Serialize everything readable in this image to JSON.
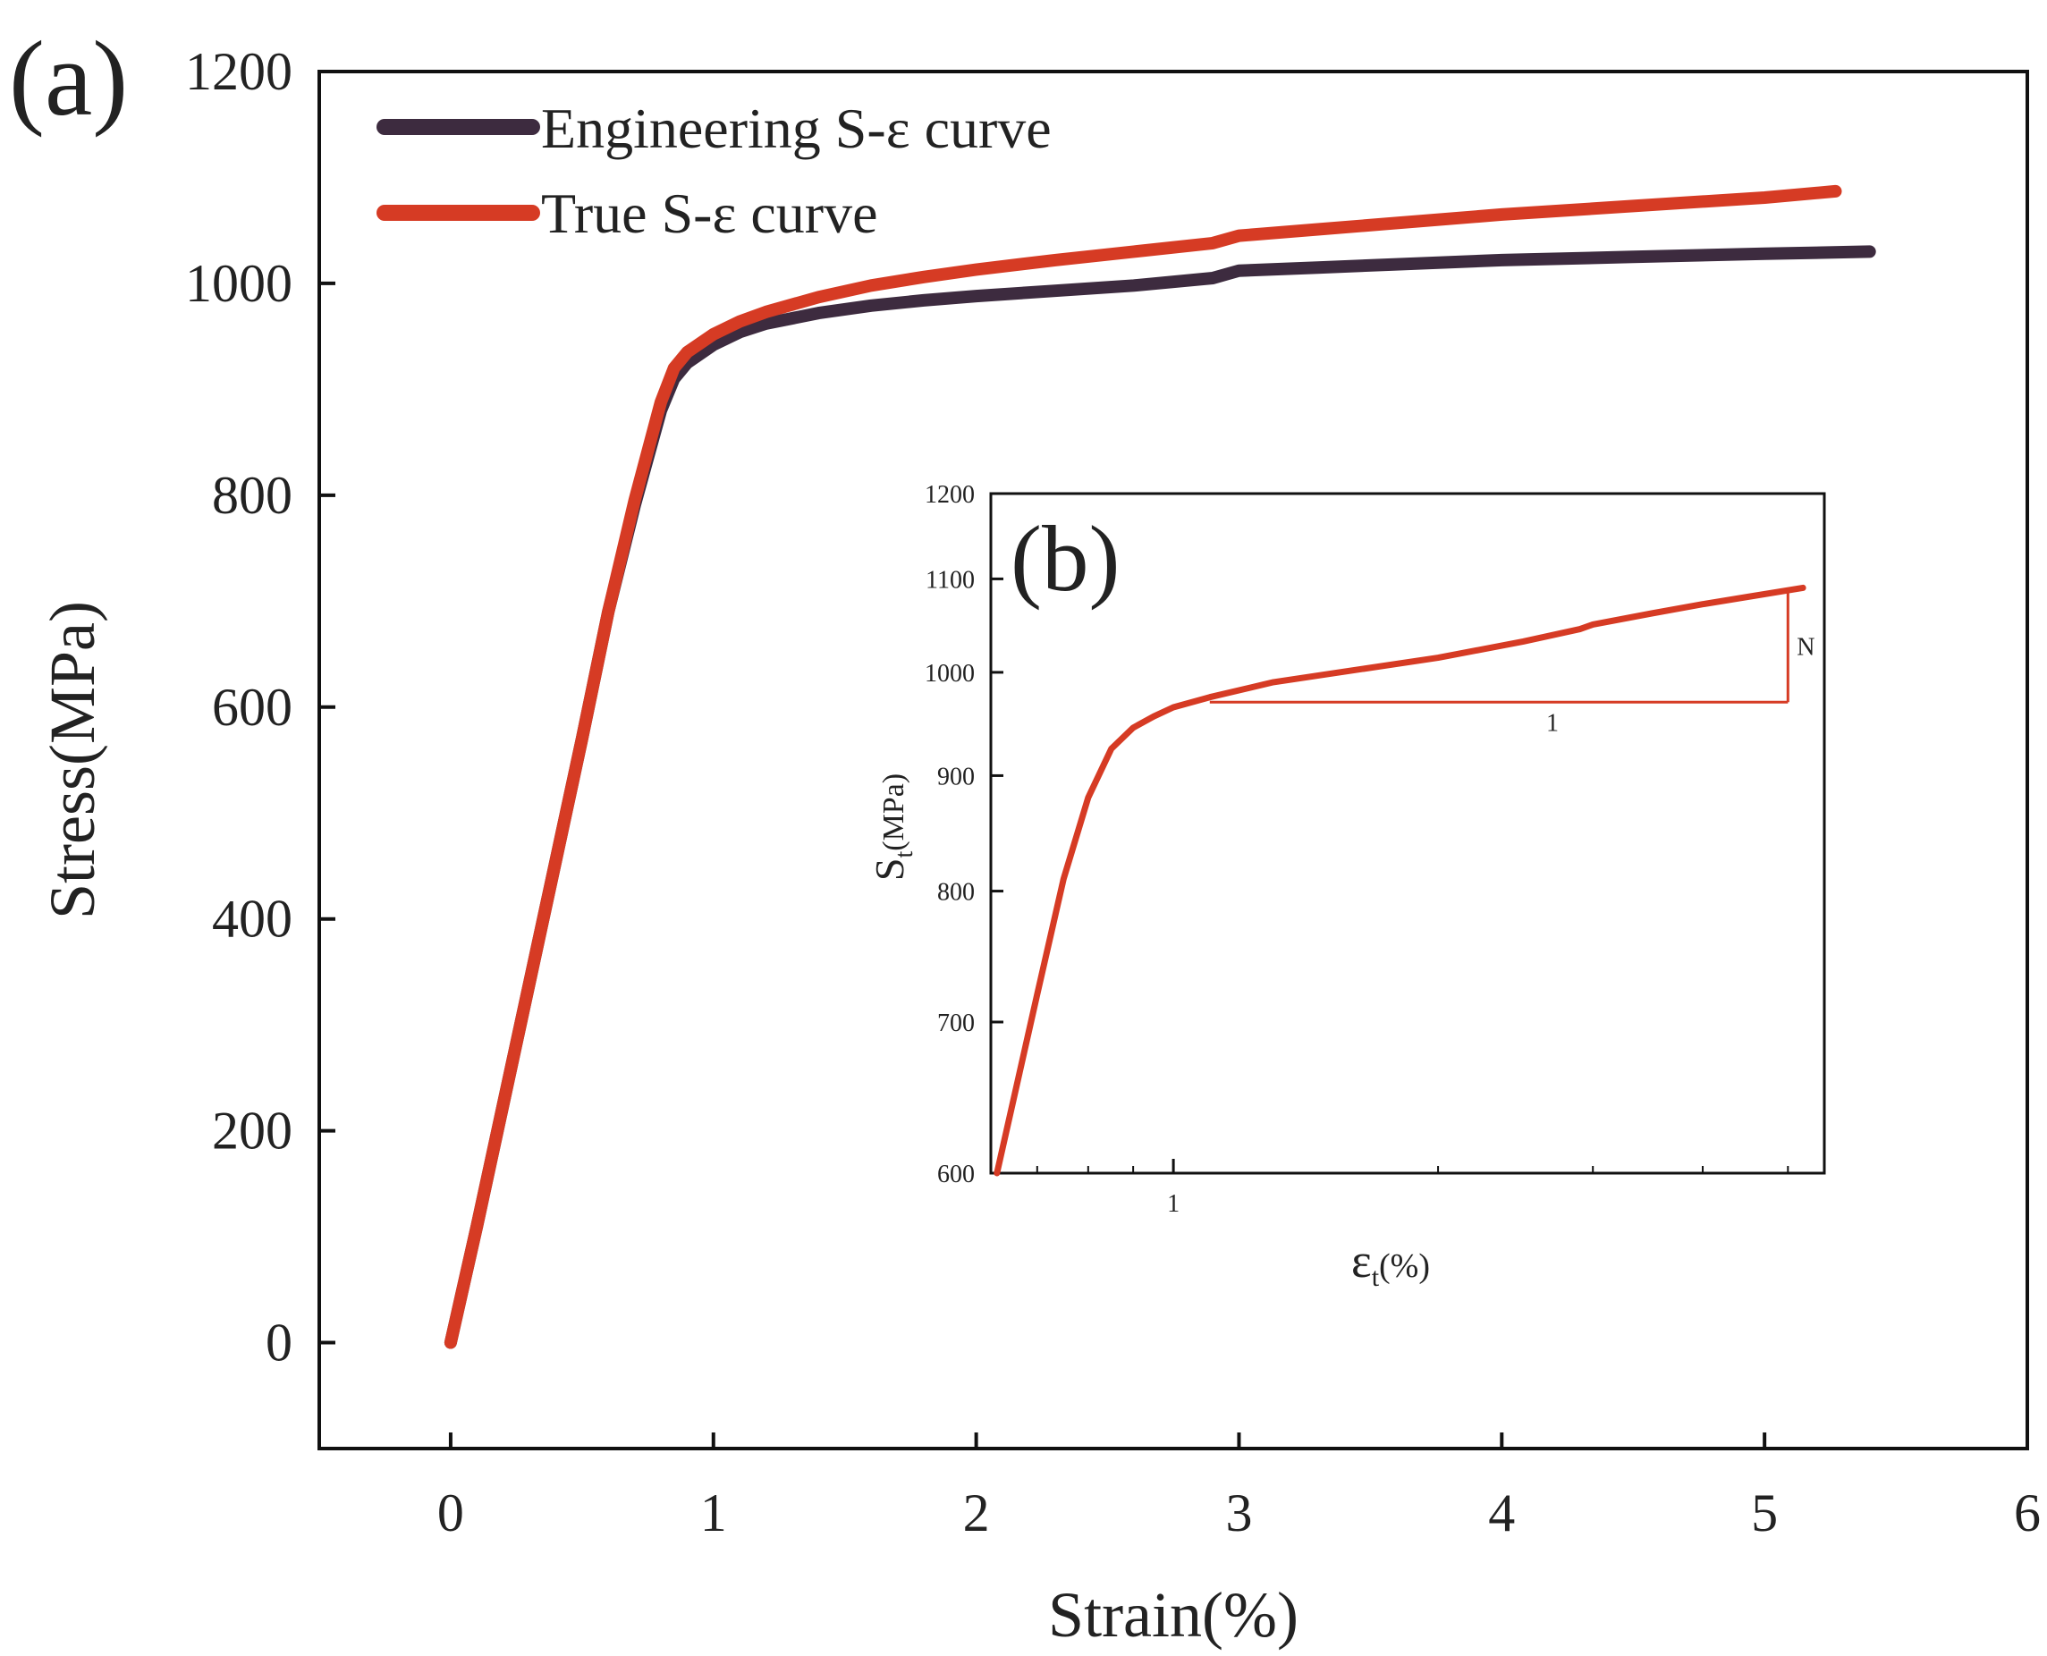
{
  "chart_data": [
    {
      "panel_label": "(a)",
      "type": "line",
      "xlabel": "Strain(%)",
      "ylabel": "Stress(MPa)",
      "xlim": [
        -0.5,
        6
      ],
      "ylim": [
        -100,
        1200
      ],
      "xticks": [
        0,
        1,
        2,
        3,
        4,
        5,
        6
      ],
      "yticks": [
        0,
        200,
        400,
        600,
        800,
        1000,
        1200
      ],
      "xtick_labels": [
        "0",
        "1",
        "2",
        "3",
        "4",
        "5",
        "6"
      ],
      "ytick_labels": [
        "0",
        "200",
        "400",
        "600",
        "800",
        "1000",
        "1200"
      ],
      "legend_placement": "top-left",
      "series": [
        {
          "name": "Engineering S-ε curve",
          "color": "#3d2b3f",
          "x": [
            0,
            0.1,
            0.2,
            0.3,
            0.4,
            0.5,
            0.6,
            0.7,
            0.8,
            0.85,
            0.9,
            1.0,
            1.1,
            1.2,
            1.4,
            1.6,
            1.8,
            2.0,
            2.3,
            2.6,
            2.9,
            3.0,
            3.3,
            3.6,
            4.0,
            4.5,
            5.0,
            5.4
          ],
          "y": [
            0,
            110,
            225,
            340,
            455,
            570,
            690,
            790,
            880,
            910,
            925,
            942,
            954,
            962,
            972,
            979,
            984,
            988,
            993,
            998,
            1005,
            1012,
            1015,
            1018,
            1022,
            1025,
            1028,
            1030
          ]
        },
        {
          "name": "True S-ε curve",
          "color": "#d63b24",
          "x": [
            0,
            0.1,
            0.2,
            0.3,
            0.4,
            0.5,
            0.6,
            0.7,
            0.8,
            0.85,
            0.9,
            1.0,
            1.1,
            1.2,
            1.4,
            1.6,
            1.8,
            2.0,
            2.3,
            2.6,
            2.9,
            3.0,
            3.3,
            3.6,
            4.0,
            4.5,
            5.0,
            5.27
          ],
          "y": [
            0,
            110,
            225,
            340,
            455,
            570,
            690,
            795,
            888,
            920,
            935,
            952,
            964,
            973,
            987,
            998,
            1006,
            1013,
            1022,
            1030,
            1038,
            1045,
            1051,
            1057,
            1065,
            1073,
            1081,
            1087
          ]
        }
      ]
    },
    {
      "panel_label": "(b)",
      "type": "line",
      "xlabel": "ε",
      "xlabel_subscript": "t",
      "xlabel_unit": "(%)",
      "ylabel": "S",
      "ylabel_subscript": "t",
      "ylabel_unit": "(MPa)",
      "x_scale": "log",
      "y_scale": "log",
      "xlim": [
        0.62,
        5.5
      ],
      "ylim": [
        600,
        1200
      ],
      "xticks": [
        1
      ],
      "xtick_labels": [
        "1"
      ],
      "yticks": [
        600,
        700,
        800,
        900,
        1000,
        1100,
        1200
      ],
      "ytick_labels": [
        "600",
        "700",
        "800",
        "900",
        "1000",
        "1100",
        "1200"
      ],
      "series": [
        {
          "name": "True S-ε curve",
          "color": "#d63b24",
          "x": [
            0.63,
            0.7,
            0.75,
            0.8,
            0.85,
            0.9,
            0.95,
            1.0,
            1.1,
            1.3,
            1.6,
            2.0,
            2.5,
            2.9,
            3.0,
            3.5,
            4.0,
            4.5,
            5.2
          ],
          "y": [
            600,
            720,
            810,
            880,
            925,
            945,
            956,
            965,
            975,
            990,
            1002,
            1015,
            1032,
            1045,
            1050,
            1062,
            1072,
            1080,
            1090
          ]
        }
      ],
      "annotations": {
        "slope_triangle": {
          "x_start": 1.1,
          "x_end": 5.0,
          "y_base": 970,
          "y_top": 1088
        },
        "run_label": "1",
        "rise_label": "N"
      }
    }
  ]
}
